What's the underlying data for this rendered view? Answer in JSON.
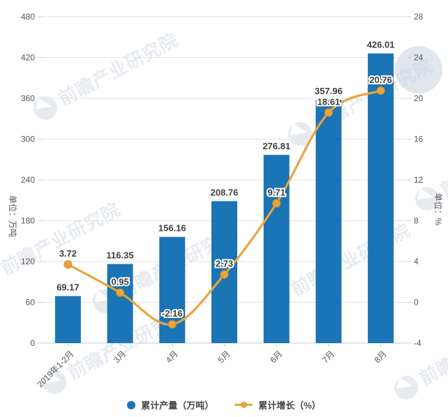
{
  "chart_data": {
    "type": "combo",
    "categories": [
      "2019年1-2月",
      "3月",
      "4月",
      "5月",
      "6月",
      "7月",
      "8月"
    ],
    "series": [
      {
        "name": "累计产量（万吨）",
        "type": "bar",
        "axis": "left",
        "color": "#1a74b6",
        "values": [
          69.17,
          116.35,
          156.16,
          208.76,
          276.81,
          357.96,
          426.01
        ],
        "labels": [
          "69.17",
          "116.35",
          "156.16",
          "208.76",
          "276.81",
          "357.96",
          "426.01"
        ]
      },
      {
        "name": "累计增长（%）",
        "type": "line",
        "axis": "right",
        "smooth": true,
        "color": "#e9a43c",
        "point_color": "#e9a43c",
        "point_border": "#d99223",
        "values": [
          3.72,
          0.95,
          -2.16,
          2.73,
          9.71,
          18.61,
          20.76
        ],
        "labels": [
          "3.72",
          "0.95",
          "-2.16",
          "2.73",
          "9.71",
          "18.61",
          "20.76"
        ]
      }
    ],
    "left_axis": {
      "name": "单位：万吨",
      "min": 0,
      "max": 480,
      "step": 60,
      "ticks": [
        "0",
        "60",
        "120",
        "180",
        "240",
        "300",
        "360",
        "420",
        "480"
      ]
    },
    "right_axis": {
      "name": "单位：%",
      "min": -4,
      "max": 28,
      "step": 4,
      "ticks": [
        "-4",
        "0",
        "4",
        "8",
        "12",
        "16",
        "20",
        "24",
        "28"
      ]
    },
    "grid": true,
    "legend_position": "bottom",
    "value_label_color": "#3f3f3f",
    "tick_label_color": "#555555",
    "grid_color": "#e3e3e3",
    "axis_line_color": "#c9c9c9"
  },
  "watermark": {
    "text": "前瞻产业研究院",
    "color": "#c9d2de"
  }
}
